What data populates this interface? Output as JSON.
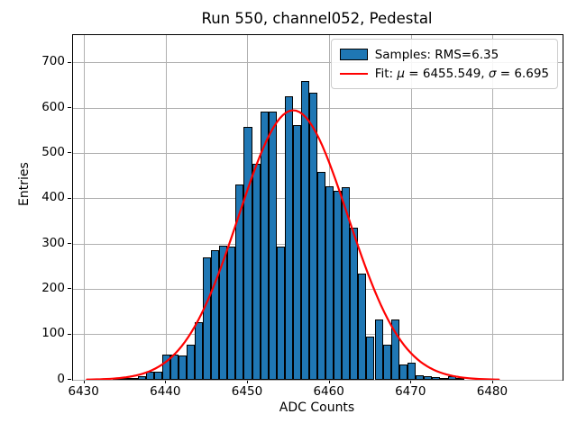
{
  "figure": {
    "title": "Run 550, channel052, Pedestal",
    "xlabel": "ADC Counts",
    "ylabel": "Entries"
  },
  "legend": {
    "samples_label": "Samples: RMS=6.35",
    "fit_prefix": "Fit: ",
    "fit_mu_symbol": "μ",
    "fit_mu_rest": " = 6455.549, ",
    "fit_sigma_symbol": "σ",
    "fit_sigma_rest": " = 6.695"
  },
  "colors": {
    "bar_fill": "#1f77b4",
    "bar_edge": "#000000",
    "fit_line": "#ff0000",
    "grid": "#b0b0b0",
    "frame": "#000000",
    "background": "#ffffff"
  },
  "chart_data": {
    "type": "bar",
    "subtype": "histogram",
    "title": "Run 550, channel052, Pedestal",
    "xlabel": "ADC Counts",
    "ylabel": "Entries",
    "xlim": [
      6428.6,
      6488.5
    ],
    "ylim": [
      0,
      761
    ],
    "xticks": [
      6430,
      6440,
      6450,
      6460,
      6470,
      6480
    ],
    "yticks": [
      0,
      100,
      200,
      300,
      400,
      500,
      600,
      700
    ],
    "grid": true,
    "legend_position": "upper right",
    "bin_width": 1,
    "bin_centers": [
      6434,
      6435,
      6436,
      6437,
      6438,
      6439,
      6440,
      6441,
      6442,
      6443,
      6444,
      6445,
      6446,
      6447,
      6448,
      6449,
      6450,
      6451,
      6452,
      6453,
      6454,
      6455,
      6456,
      6457,
      6458,
      6459,
      6460,
      6461,
      6462,
      6463,
      6464,
      6465,
      6466,
      6467,
      6468,
      6469,
      6470,
      6471,
      6472,
      6473,
      6474,
      6475,
      6476
    ],
    "counts": [
      4,
      2,
      2,
      8,
      17,
      18,
      55,
      56,
      54,
      77,
      128,
      270,
      287,
      297,
      295,
      432,
      558,
      477,
      592,
      592,
      295,
      625,
      563,
      660,
      633,
      459,
      428,
      418,
      425,
      335,
      235,
      95,
      134,
      78,
      134,
      33,
      38,
      9,
      8,
      5,
      4,
      8,
      2
    ],
    "samples_rms": 6.35,
    "fit": {
      "type": "gaussian",
      "mu": 6455.549,
      "sigma": 6.695,
      "amplitude": 595,
      "x_range": [
        6430.3,
        6480.8
      ]
    }
  }
}
